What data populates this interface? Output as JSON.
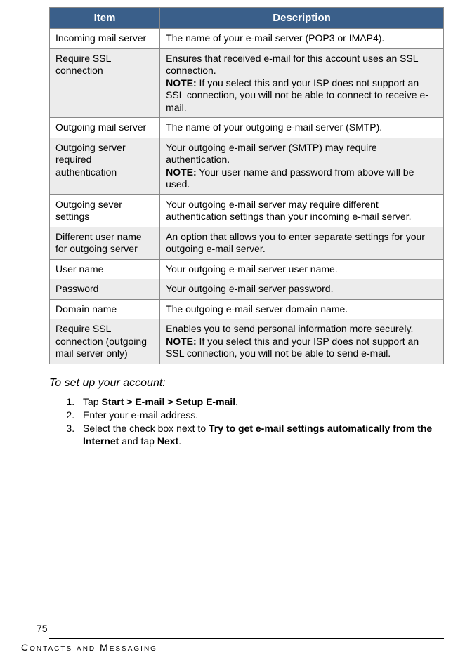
{
  "table": {
    "header_bg": "#3a5f8a",
    "header_color": "#ffffff",
    "alt_row_bg": "#ececec",
    "border_color": "#888888",
    "columns": [
      "Item",
      "Description"
    ],
    "rows": [
      {
        "item": "Incoming mail server",
        "desc": [
          {
            "t": "The name of your e-mail server (POP3 or IMAP4)."
          }
        ],
        "alt": false
      },
      {
        "item": "Require SSL connection",
        "desc": [
          {
            "t": "Ensures that received e-mail for this account uses an SSL connection."
          },
          {
            "br": true
          },
          {
            "b": "NOTE:"
          },
          {
            "t": " If you select this and your ISP does not support an SSL connection, you will not be able to connect to receive e-mail."
          }
        ],
        "alt": true
      },
      {
        "item": "Outgoing mail server",
        "desc": [
          {
            "t": "The name of your outgoing e-mail server (SMTP)."
          }
        ],
        "alt": false
      },
      {
        "item": "Outgoing server required authentication",
        "desc": [
          {
            "t": "Your outgoing e-mail server (SMTP) may require authentication."
          },
          {
            "br": true
          },
          {
            "b": "NOTE:"
          },
          {
            "t": " Your user name and password from above will be used."
          }
        ],
        "alt": true
      },
      {
        "item": "Outgoing sever settings",
        "desc": [
          {
            "t": "Your outgoing e-mail server may require different authentication settings than your incoming e-mail server."
          }
        ],
        "alt": false
      },
      {
        "item": "Different user name for outgoing server",
        "desc": [
          {
            "t": "An option that allows you to enter separate settings for your outgoing e-mail server."
          }
        ],
        "alt": true
      },
      {
        "item": "User name",
        "desc": [
          {
            "t": "Your outgoing e-mail server user name."
          }
        ],
        "alt": false
      },
      {
        "item": "Password",
        "desc": [
          {
            "t": "Your outgoing e-mail server password."
          }
        ],
        "alt": true
      },
      {
        "item": "Domain name",
        "desc": [
          {
            "t": "The outgoing e-mail server domain name."
          }
        ],
        "alt": false
      },
      {
        "item": "Require SSL connection (outgoing mail server only)",
        "desc": [
          {
            "t": "Enables you to send personal information more securely."
          },
          {
            "br": true
          },
          {
            "b": "NOTE:"
          },
          {
            "t": " If you select this and your ISP does not support an SSL connection, you will not be able to send e-mail."
          }
        ],
        "alt": true
      }
    ]
  },
  "section_heading": "To set up your account:",
  "steps": [
    [
      {
        "t": "Tap "
      },
      {
        "b": "Start > E-mail > Setup E-mail"
      },
      {
        "t": "."
      }
    ],
    [
      {
        "t": "Enter your e-mail address."
      }
    ],
    [
      {
        "t": "Select the check box next to "
      },
      {
        "b": "Try to get e-mail settings automatically from the Internet"
      },
      {
        "t": " and tap "
      },
      {
        "b": "Next"
      },
      {
        "t": "."
      }
    ]
  ],
  "page_number": "75",
  "footer_text": "Contacts and Messaging"
}
